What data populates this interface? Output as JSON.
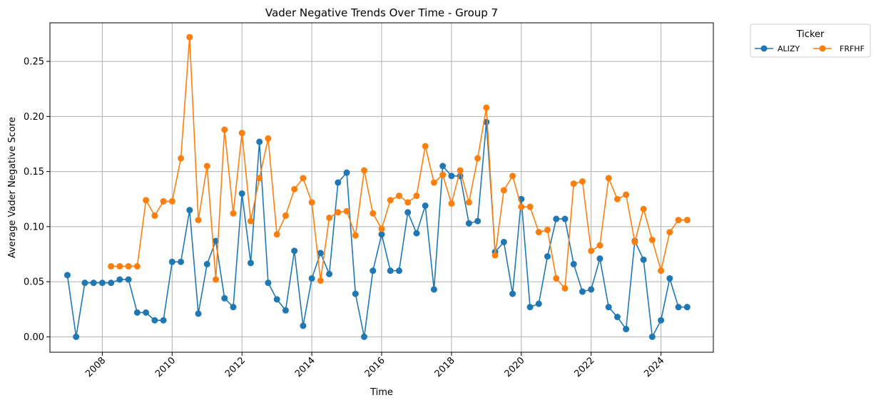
{
  "chart_data": {
    "type": "line",
    "title": "Vader Negative Trends Over Time - Group 7",
    "xlabel": "Time",
    "ylabel": "Average Vader Negative Score",
    "xlim": [
      2006.5,
      2025.5
    ],
    "ylim": [
      -0.014,
      0.285
    ],
    "xticks": [
      "2008",
      "2010",
      "2012",
      "2014",
      "2016",
      "2018",
      "2020",
      "2022",
      "2024"
    ],
    "yticks": [
      "0.00",
      "0.05",
      "0.10",
      "0.15",
      "0.20",
      "0.25"
    ],
    "grid": true,
    "legend": {
      "title": "Ticker",
      "placement": "outside-top-right",
      "columns": 2
    },
    "series": [
      {
        "name": "ALIZY",
        "color": "#1f77b4",
        "x": [
          2007.0,
          2007.25,
          2007.5,
          2007.75,
          2008.0,
          2008.25,
          2008.5,
          2008.75,
          2009.0,
          2009.25,
          2009.5,
          2009.75,
          2010.0,
          2010.25,
          2010.5,
          2010.75,
          2011.0,
          2011.25,
          2011.5,
          2011.75,
          2012.0,
          2012.25,
          2012.5,
          2012.75,
          2013.0,
          2013.25,
          2013.5,
          2013.75,
          2014.0,
          2014.25,
          2014.5,
          2014.75,
          2015.0,
          2015.25,
          2015.5,
          2015.75,
          2016.0,
          2016.25,
          2016.5,
          2016.75,
          2017.0,
          2017.25,
          2017.5,
          2017.75,
          2018.0,
          2018.25,
          2018.5,
          2018.75,
          2019.0,
          2019.25,
          2019.5,
          2019.75,
          2020.0,
          2020.25,
          2020.5,
          2020.75,
          2021.0,
          2021.25,
          2021.5,
          2021.75,
          2022.0,
          2022.25,
          2022.5,
          2022.75,
          2023.0,
          2023.25,
          2023.5,
          2023.75,
          2024.0,
          2024.25,
          2024.5,
          2024.75
        ],
        "values": [
          0.056,
          0.0,
          0.049,
          0.049,
          0.049,
          0.049,
          0.052,
          0.052,
          0.022,
          0.022,
          0.015,
          0.015,
          0.068,
          0.068,
          0.115,
          0.021,
          0.066,
          0.087,
          0.035,
          0.027,
          0.13,
          0.067,
          0.177,
          0.049,
          0.034,
          0.024,
          0.078,
          0.01,
          0.053,
          0.076,
          0.057,
          0.14,
          0.149,
          0.039,
          0.0,
          0.06,
          0.093,
          0.06,
          0.06,
          0.113,
          0.094,
          0.119,
          0.043,
          0.155,
          0.146,
          0.146,
          0.103,
          0.105,
          0.195,
          0.077,
          0.086,
          0.039,
          0.125,
          0.027,
          0.03,
          0.073,
          0.107,
          0.107,
          0.066,
          0.041,
          0.043,
          0.071,
          0.027,
          0.018,
          0.007,
          0.087,
          0.07,
          0.0,
          0.015,
          0.053,
          0.027,
          0.027
        ]
      },
      {
        "name": "FRFHF",
        "color": "#ff7f0e",
        "x": [
          2008.25,
          2008.5,
          2008.75,
          2009.0,
          2009.25,
          2009.5,
          2009.75,
          2010.0,
          2010.25,
          2010.5,
          2010.75,
          2011.0,
          2011.25,
          2011.5,
          2011.75,
          2012.0,
          2012.25,
          2012.5,
          2012.75,
          2013.0,
          2013.25,
          2013.5,
          2013.75,
          2014.0,
          2014.25,
          2014.5,
          2014.75,
          2015.0,
          2015.25,
          2015.5,
          2015.75,
          2016.0,
          2016.25,
          2016.5,
          2016.75,
          2017.0,
          2017.25,
          2017.5,
          2017.75,
          2018.0,
          2018.25,
          2018.5,
          2018.75,
          2019.0,
          2019.25,
          2019.5,
          2019.75,
          2020.0,
          2020.25,
          2020.5,
          2020.75,
          2021.0,
          2021.25,
          2021.5,
          2021.75,
          2022.0,
          2022.25,
          2022.5,
          2022.75,
          2023.0,
          2023.25,
          2023.5,
          2023.75,
          2024.0,
          2024.25,
          2024.5,
          2024.75
        ],
        "values": [
          0.064,
          0.064,
          0.064,
          0.064,
          0.124,
          0.11,
          0.123,
          0.123,
          0.162,
          0.272,
          0.106,
          0.155,
          0.052,
          0.188,
          0.112,
          0.185,
          0.105,
          0.144,
          0.18,
          0.093,
          0.11,
          0.134,
          0.144,
          0.122,
          0.051,
          0.108,
          0.113,
          0.114,
          0.092,
          0.151,
          0.112,
          0.098,
          0.124,
          0.128,
          0.122,
          0.128,
          0.173,
          0.14,
          0.147,
          0.121,
          0.151,
          0.122,
          0.162,
          0.208,
          0.074,
          0.133,
          0.146,
          0.118,
          0.118,
          0.095,
          0.097,
          0.053,
          0.044,
          0.139,
          0.141,
          0.078,
          0.083,
          0.144,
          0.125,
          0.129,
          0.086,
          0.116,
          0.088,
          0.06,
          0.095,
          0.106,
          0.106
        ]
      }
    ]
  }
}
